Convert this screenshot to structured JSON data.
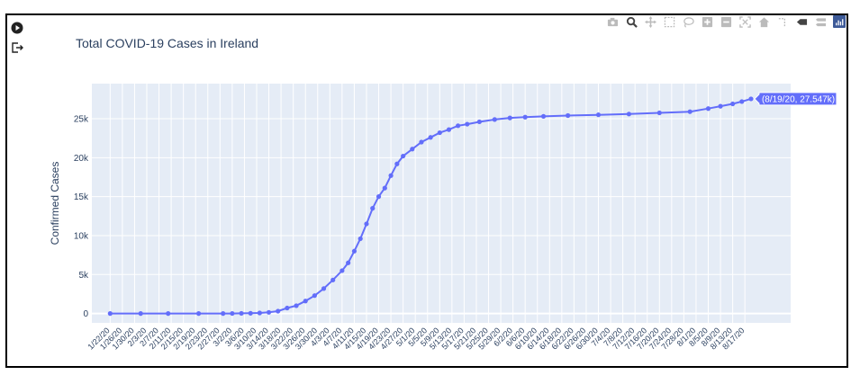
{
  "left_icons": [
    "play-circle-icon",
    "exit-icon"
  ],
  "modebar": [
    {
      "name": "camera-icon"
    },
    {
      "name": "zoom-icon"
    },
    {
      "name": "pan-icon"
    },
    {
      "name": "box-select-icon"
    },
    {
      "name": "lasso-select-icon"
    },
    {
      "name": "zoom-in-icon"
    },
    {
      "name": "zoom-out-icon"
    },
    {
      "name": "autoscale-icon"
    },
    {
      "name": "reset-axes-icon"
    },
    {
      "name": "spike-lines-icon"
    },
    {
      "name": "hover-closest-icon"
    },
    {
      "name": "hover-compare-icon"
    },
    {
      "name": "plotly-logo-icon"
    }
  ],
  "chart_data": {
    "type": "line",
    "title": "Total COVID-19 Cases in Ireland",
    "xlabel": "",
    "ylabel": "Confirmed Cases",
    "yticks": [
      {
        "value": 0,
        "label": "0"
      },
      {
        "value": 5000,
        "label": "5k"
      },
      {
        "value": 10000,
        "label": "10k"
      },
      {
        "value": 15000,
        "label": "15k"
      },
      {
        "value": 20000,
        "label": "20k"
      },
      {
        "value": 25000,
        "label": "25k"
      }
    ],
    "ylim": [
      -1200,
      29500
    ],
    "xrange_dates": [
      "1/16/20",
      "9/1/20"
    ],
    "xtick_labels": [
      "1/22/20",
      "1/26/20",
      "1/30/20",
      "2/3/20",
      "2/7/20",
      "2/11/20",
      "2/15/20",
      "2/19/20",
      "2/23/20",
      "2/27/20",
      "3/2/20",
      "3/6/20",
      "3/10/20",
      "3/14/20",
      "3/18/20",
      "3/22/20",
      "3/26/20",
      "3/30/20",
      "4/3/20",
      "4/7/20",
      "4/11/20",
      "4/15/20",
      "4/19/20",
      "4/23/20",
      "4/27/20",
      "5/1/20",
      "5/5/20",
      "5/9/20",
      "5/13/20",
      "5/17/20",
      "5/21/20",
      "5/25/20",
      "5/29/20",
      "6/2/20",
      "6/6/20",
      "6/10/20",
      "6/14/20",
      "6/18/20",
      "6/22/20",
      "6/26/20",
      "6/30/20",
      "7/4/20",
      "7/8/20",
      "7/12/20",
      "7/16/20",
      "7/20/20",
      "7/24/20",
      "7/28/20",
      "8/1/20",
      "8/5/20",
      "8/9/20",
      "8/13/20",
      "8/17/20"
    ],
    "series": [
      {
        "color": "#636efa",
        "x": [
          "1/22/20",
          "2/1/20",
          "2/10/20",
          "2/20/20",
          "2/28/20",
          "3/2/20",
          "3/5/20",
          "3/8/20",
          "3/11/20",
          "3/14/20",
          "3/17/20",
          "3/20/20",
          "3/23/20",
          "3/26/20",
          "3/29/20",
          "4/1/20",
          "4/4/20",
          "4/7/20",
          "4/9/20",
          "4/11/20",
          "4/13/20",
          "4/15/20",
          "4/17/20",
          "4/19/20",
          "4/21/20",
          "4/23/20",
          "4/25/20",
          "4/27/20",
          "4/30/20",
          "5/3/20",
          "5/6/20",
          "5/9/20",
          "5/12/20",
          "5/15/20",
          "5/18/20",
          "5/22/20",
          "5/27/20",
          "6/1/20",
          "6/6/20",
          "6/12/20",
          "6/20/20",
          "6/30/20",
          "7/10/20",
          "7/20/20",
          "7/30/20",
          "8/5/20",
          "8/9/20",
          "8/13/20",
          "8/16/20",
          "8/19/20"
        ],
        "y": [
          0,
          0,
          0,
          0,
          0,
          2,
          18,
          30,
          70,
          150,
          300,
          700,
          1000,
          1600,
          2300,
          3200,
          4300,
          5500,
          6500,
          8000,
          9600,
          11500,
          13500,
          15000,
          16100,
          17700,
          19200,
          20200,
          21100,
          22000,
          22600,
          23200,
          23600,
          24100,
          24300,
          24600,
          24900,
          25100,
          25200,
          25300,
          25400,
          25500,
          25600,
          25750,
          25900,
          26300,
          26600,
          26900,
          27200,
          27547
        ]
      }
    ],
    "hover_label": "(8/19/20, 27.547k)",
    "grid": true,
    "legend": "none"
  }
}
